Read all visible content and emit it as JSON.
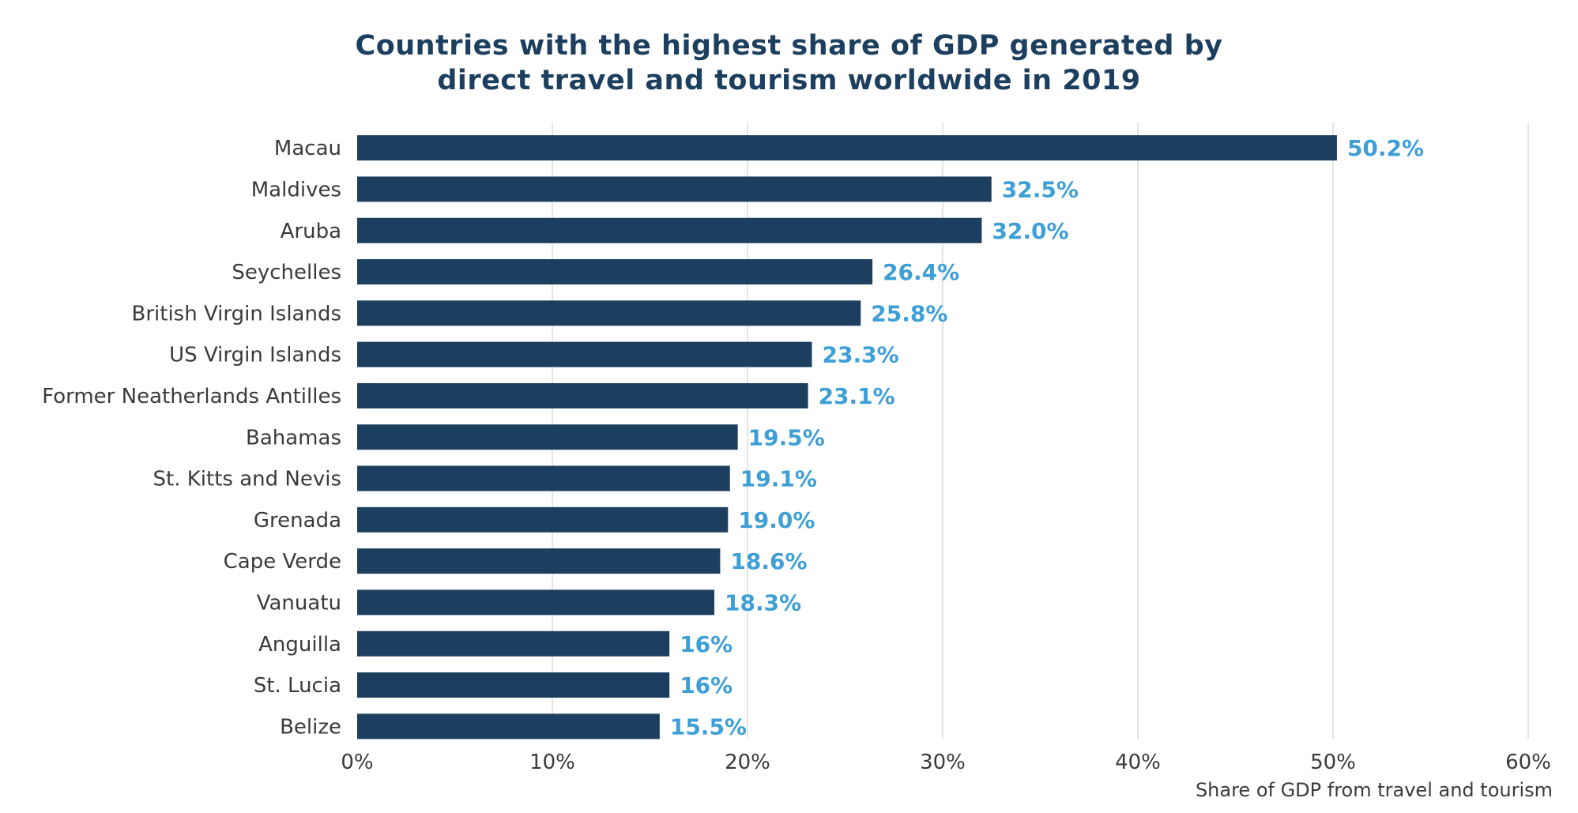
{
  "chart_data": {
    "type": "bar",
    "orientation": "horizontal",
    "title_lines": [
      "Countries with the highest share of GDP generated by",
      "direct travel and tourism worldwide in 2019"
    ],
    "xlabel": "Share of GDP from travel and tourism",
    "ylabel": "",
    "xlim": [
      0,
      60
    ],
    "xticks": [
      "0%",
      "10%",
      "20%",
      "30%",
      "40%",
      "50%",
      "60%"
    ],
    "grid": true,
    "categories": [
      "Macau",
      "Maldives",
      "Aruba",
      "Seychelles",
      "British Virgin Islands",
      "US Virgin Islands",
      "Former Neatherlands Antilles",
      "Bahamas",
      "St. Kitts and Nevis",
      "Grenada",
      "Cape Verde",
      "Vanuatu",
      "Anguilla",
      "St. Lucia",
      "Belize"
    ],
    "values": [
      50.2,
      32.5,
      32.0,
      26.4,
      25.8,
      23.3,
      23.1,
      19.5,
      19.1,
      19.0,
      18.6,
      18.3,
      16,
      16,
      15.5
    ],
    "value_labels": [
      "50.2%",
      "32.5%",
      "32.0%",
      "26.4%",
      "25.8%",
      "23.3%",
      "23.1%",
      "19.5%",
      "19.1%",
      "19.0%",
      "18.6%",
      "18.3%",
      "16%",
      "16%",
      "15.5%"
    ],
    "bar_color": "#1d3f5f",
    "label_color": "#3d9fd6"
  }
}
